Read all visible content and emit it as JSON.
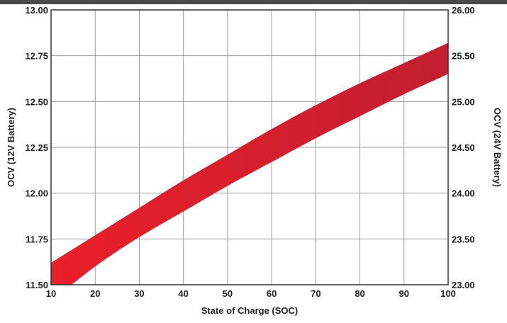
{
  "chart_data": {
    "type": "area",
    "xlabel": "State of Charge (SOC)",
    "ylabel": "OCV (12V Battery)",
    "y2label": "OCV (24V Battery)",
    "xlim": [
      10,
      100
    ],
    "ylim": [
      11.5,
      13.0
    ],
    "y2lim": [
      23.0,
      26.0
    ],
    "x_ticks": [
      "10",
      "20",
      "30",
      "40",
      "50",
      "60",
      "70",
      "80",
      "90",
      "100"
    ],
    "y_ticks": [
      "11.50",
      "11.75",
      "12.00",
      "12.25",
      "12.50",
      "12.75",
      "13.00"
    ],
    "y2_ticks": [
      "23.00",
      "23.50",
      "24.00",
      "24.50",
      "25.00",
      "25.50",
      "26.00"
    ],
    "grid": true,
    "band": {
      "x": [
        10,
        20,
        30,
        40,
        50,
        60,
        70,
        80,
        90,
        100
      ],
      "upper": [
        11.62,
        11.77,
        11.92,
        12.07,
        12.21,
        12.35,
        12.48,
        12.6,
        12.71,
        12.82
      ],
      "lower": [
        11.41,
        11.6,
        11.76,
        11.9,
        12.04,
        12.17,
        12.3,
        12.42,
        12.54,
        12.65
      ]
    },
    "colors": {
      "band_dark": "#c8202c",
      "band_light": "#e8202a",
      "grid": "#9a9a9a",
      "frame": "#333333"
    }
  }
}
